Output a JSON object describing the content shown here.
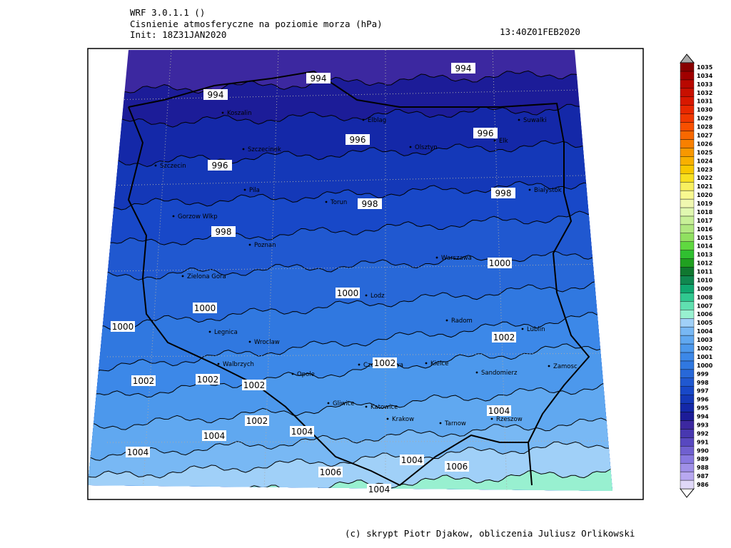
{
  "header": {
    "model": "WRF 3.0.1.1 ()",
    "title": "Cisnienie atmosferyczne na poziomie morza (hPa)",
    "init": "Init: 18Z31JAN2020",
    "valid": "13:40Z01FEB2020"
  },
  "footer": "(c) skrypt Piotr Djakow, obliczenia Juliusz Orlikowski",
  "cities": [
    "Koszalin",
    "Elblag",
    "Suwalki",
    "Szczecinek",
    "Olsztyn",
    "Elk",
    "Szczecin",
    "Pila",
    "Torun",
    "Bialystok",
    "Gorzow Wlkp",
    "Poznan",
    "Warszawa",
    "Zielona Gora",
    "Lodz",
    "Radom",
    "Legnica",
    "Wroclaw",
    "Lublin",
    "Walbrzych",
    "Opole",
    "Czestochowa",
    "Kielce",
    "Sandomierz",
    "Zamosc",
    "Gliwice",
    "Katowice",
    "Krakow",
    "Tarnow",
    "Rzeszow"
  ],
  "contour_labels": [
    994,
    994,
    994,
    996,
    996,
    996,
    998,
    998,
    998,
    1000,
    1000,
    1000,
    1000,
    1002,
    1002,
    1002,
    1002,
    1002,
    1002,
    1004,
    1004,
    1004,
    1004,
    1004,
    1004,
    1006,
    1006
  ],
  "colorbar": {
    "levels": [
      986,
      987,
      988,
      989,
      990,
      991,
      992,
      993,
      994,
      995,
      996,
      997,
      998,
      999,
      1000,
      1001,
      1002,
      1003,
      1004,
      1005,
      1006,
      1007,
      1008,
      1009,
      1010,
      1011,
      1012,
      1013,
      1014,
      1015,
      1016,
      1017,
      1018,
      1019,
      1020,
      1021,
      1022,
      1023,
      1024,
      1025,
      1026,
      1027,
      1028,
      1029,
      1030,
      1031,
      1032,
      1033,
      1034,
      1035
    ],
    "colors": [
      "#e0d8f8",
      "#b8a8f0",
      "#a090e8",
      "#8878e0",
      "#7060d0",
      "#5848c0",
      "#4838b0",
      "#3c28a0",
      "#1c1c98",
      "#1428a8",
      "#1438b8",
      "#1848c8",
      "#2058d0",
      "#2868d8",
      "#3078e0",
      "#3c88e8",
      "#4c98ec",
      "#60a8f0",
      "#78b8f4",
      "#a0d0f8",
      "#98f0d0",
      "#60e0b0",
      "#30c890",
      "#10a870",
      "#108850",
      "#107830",
      "#20a020",
      "#30c030",
      "#60d840",
      "#90e060",
      "#b0e880",
      "#c8f098",
      "#e0f8b0",
      "#f0f8b0",
      "#f8f890",
      "#f8f060",
      "#f8e020",
      "#f8c800",
      "#f8b000",
      "#f89800",
      "#f88000",
      "#f86800",
      "#f85000",
      "#f03800",
      "#e82800",
      "#d81800",
      "#c81000",
      "#b80800",
      "#a00000",
      "#880000"
    ]
  }
}
